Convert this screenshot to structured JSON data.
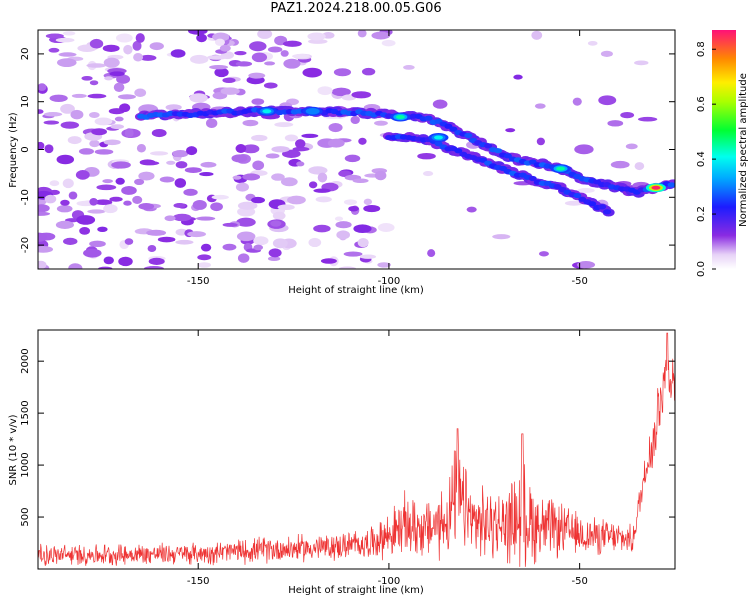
{
  "title": "PAZ1.2024.218.00.05.G06",
  "colorbar": {
    "label": "Normalized spectral amplitude",
    "ticks": [
      "0.0",
      "0.2",
      "0.4",
      "0.6",
      "0.8"
    ],
    "range": [
      0.0,
      0.87
    ]
  },
  "chart_data": [
    {
      "type": "heatmap",
      "title": "PAZ1.2024.218.00.05.G06",
      "xlabel": "Height of straight line (km)",
      "ylabel": "Frequency (Hz)",
      "xlim": [
        -192,
        -25
      ],
      "ylim": [
        -25,
        25
      ],
      "xticks": [
        -150,
        -100,
        -50
      ],
      "yticks": [
        -20,
        -10,
        0,
        10,
        20
      ],
      "ridges": [
        {
          "name": "main tone",
          "points": [
            [
              -165,
              7
            ],
            [
              -150,
              7.5
            ],
            [
              -135,
              8
            ],
            [
              -125,
              8
            ],
            [
              -110,
              7.8
            ],
            [
              -100,
              7.3
            ],
            [
              -90,
              6.5
            ],
            [
              -85,
              5
            ],
            [
              -80,
              3
            ],
            [
              -75,
              1
            ],
            [
              -70,
              -1
            ],
            [
              -65,
              -2.5
            ],
            [
              -60,
              -3
            ],
            [
              -55,
              -4
            ],
            [
              -50,
              -6
            ],
            [
              -45,
              -7
            ],
            [
              -40,
              -8
            ],
            [
              -35,
              -9
            ],
            [
              -30,
              -8
            ],
            [
              -25,
              -7
            ]
          ]
        },
        {
          "name": "second tone",
          "points": [
            [
              -100,
              2.5
            ],
            [
              -95,
              2.5
            ],
            [
              -90,
              2
            ],
            [
              -85,
              0.5
            ],
            [
              -80,
              -1
            ],
            [
              -75,
              -2.5
            ],
            [
              -70,
              -4
            ],
            [
              -65,
              -5.5
            ],
            [
              -60,
              -7
            ],
            [
              -55,
              -8
            ],
            [
              -50,
              -10
            ],
            [
              -45,
              -12
            ],
            [
              -42,
              -13
            ]
          ]
        }
      ],
      "peaks": [
        {
          "x": -30,
          "y": -8,
          "amplitude": 0.85
        },
        {
          "x": -97,
          "y": 6.8,
          "amplitude": 0.45
        },
        {
          "x": -87,
          "y": 2.5,
          "amplitude": 0.4
        },
        {
          "x": -55,
          "y": -4,
          "amplitude": 0.45
        },
        {
          "x": -132,
          "y": 8,
          "amplitude": 0.4
        },
        {
          "x": -120,
          "y": 8,
          "amplitude": 0.3
        }
      ]
    },
    {
      "type": "line",
      "xlabel": "Height of straight line (km)",
      "ylabel": "SNR (10 * v/v)",
      "xlim": [
        -192,
        -25
      ],
      "ylim": [
        0,
        2300
      ],
      "xticks": [
        -150,
        -100,
        -50
      ],
      "yticks": [
        500,
        1000,
        1500,
        2000
      ],
      "color": "#ee3333",
      "envelope": [
        {
          "x": -192,
          "base": 130,
          "amp": 120
        },
        {
          "x": -170,
          "base": 140,
          "amp": 120
        },
        {
          "x": -150,
          "base": 150,
          "amp": 120
        },
        {
          "x": -130,
          "base": 190,
          "amp": 150
        },
        {
          "x": -115,
          "base": 210,
          "amp": 150
        },
        {
          "x": -105,
          "base": 250,
          "amp": 170
        },
        {
          "x": -100,
          "base": 330,
          "amp": 260
        },
        {
          "x": -95,
          "base": 420,
          "amp": 380
        },
        {
          "x": -90,
          "base": 380,
          "amp": 320
        },
        {
          "x": -85,
          "base": 470,
          "amp": 450
        },
        {
          "x": -82,
          "base": 700,
          "amp": 600
        },
        {
          "x": -78,
          "base": 450,
          "amp": 400
        },
        {
          "x": -70,
          "base": 420,
          "amp": 380
        },
        {
          "x": -65,
          "base": 520,
          "amp": 600
        },
        {
          "x": -60,
          "base": 400,
          "amp": 380
        },
        {
          "x": -55,
          "base": 380,
          "amp": 300
        },
        {
          "x": -50,
          "base": 330,
          "amp": 230
        },
        {
          "x": -40,
          "base": 300,
          "amp": 180
        },
        {
          "x": -36,
          "base": 280,
          "amp": 150
        },
        {
          "x": -34,
          "base": 700,
          "amp": 200
        },
        {
          "x": -32,
          "base": 1100,
          "amp": 280
        },
        {
          "x": -30,
          "base": 1300,
          "amp": 350
        },
        {
          "x": -29,
          "base": 1700,
          "amp": 500
        },
        {
          "x": -27,
          "base": 1900,
          "amp": 350
        },
        {
          "x": -25,
          "base": 1800,
          "amp": 250
        }
      ],
      "peaks": [
        {
          "x": -82,
          "y": 1350
        },
        {
          "x": -65,
          "y": 1300
        },
        {
          "x": -27,
          "y": 2270
        }
      ]
    }
  ]
}
